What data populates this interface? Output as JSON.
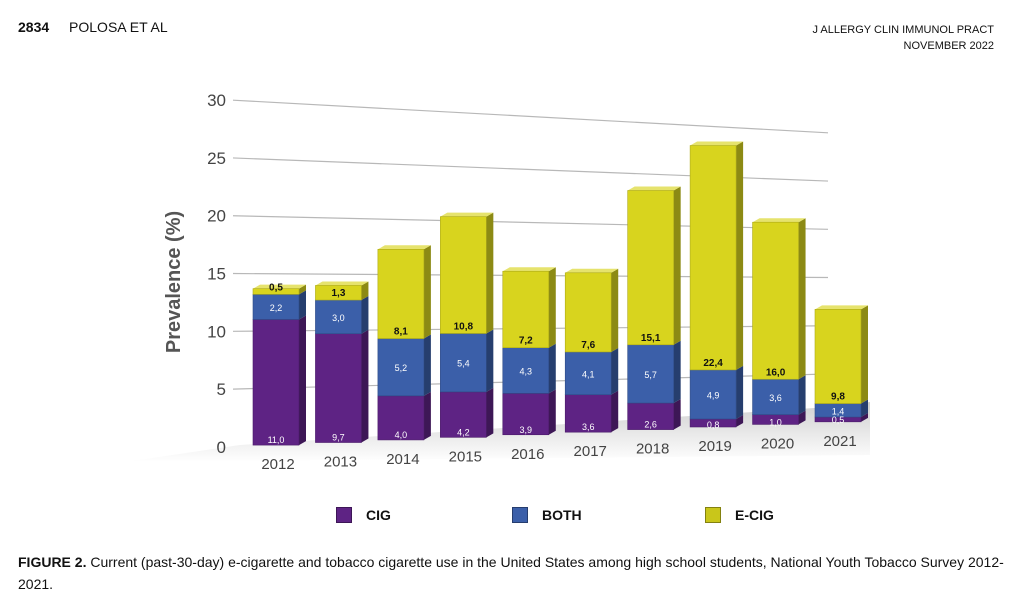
{
  "header": {
    "page_number": "2834",
    "authors": "POLOSA ET AL",
    "journal": "J ALLERGY CLIN IMMUNOL PRACT",
    "date": "NOVEMBER 2022"
  },
  "chart_data": {
    "type": "bar",
    "stacked": true,
    "title": "",
    "xlabel": "",
    "ylabel": "Prevalence (%)",
    "ylim": [
      0,
      30
    ],
    "yticks": [
      "0",
      "5",
      "10",
      "15",
      "20",
      "25",
      "30"
    ],
    "categories": [
      "2012",
      "2013",
      "2014",
      "2015",
      "2016",
      "2017",
      "2018",
      "2019",
      "2020",
      "2021"
    ],
    "series": [
      {
        "name": "CIG",
        "color": "#5e2384",
        "values": [
          11.0,
          9.7,
          4.0,
          4.2,
          3.9,
          3.6,
          2.6,
          0.8,
          1.0,
          0.5
        ],
        "labels": [
          "11,0",
          "9,7",
          "4,0",
          "4,2",
          "3,9",
          "3,6",
          "2,6",
          "0,8",
          "1,0",
          "0,5"
        ]
      },
      {
        "name": "BOTH",
        "color": "#3b5fa9",
        "values": [
          2.2,
          3.0,
          5.2,
          5.4,
          4.3,
          4.1,
          5.7,
          4.9,
          3.6,
          1.4
        ],
        "labels": [
          "2,2",
          "3,0",
          "5,2",
          "5,4",
          "4,3",
          "4,1",
          "5,7",
          "4,9",
          "3,6",
          "1,4"
        ]
      },
      {
        "name": "E-CIG",
        "color": "#d8d41e",
        "values": [
          0.5,
          1.3,
          8.1,
          10.8,
          7.2,
          7.6,
          15.1,
          22.4,
          16.0,
          9.8
        ],
        "labels": [
          "0,5",
          "1,3",
          "8,1",
          "10,8",
          "7,2",
          "7,6",
          "15,1",
          "22,4",
          "16,0",
          "9,8"
        ]
      }
    ]
  },
  "caption": {
    "label": "FIGURE 2.",
    "text": "Current (past-30-day) e-cigarette and tobacco cigarette use in the United States among high school students, National Youth Tobacco Survey 2012-2021."
  }
}
